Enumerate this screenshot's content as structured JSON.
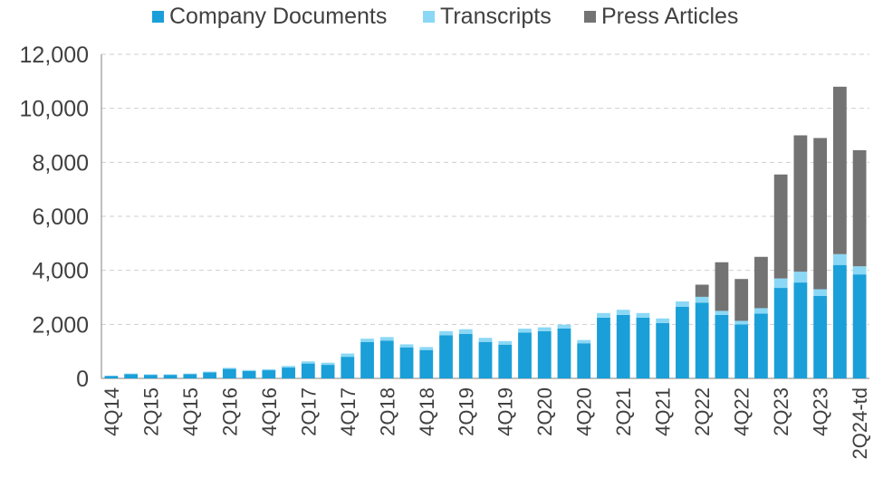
{
  "chart_data": {
    "type": "bar",
    "stacked": true,
    "title": "",
    "xlabel": "",
    "ylabel": "",
    "ylim": [
      0,
      12000
    ],
    "yticks": [
      0,
      2000,
      4000,
      6000,
      8000,
      10000,
      12000
    ],
    "ytick_labels": [
      "0",
      "2,000",
      "4,000",
      "6,000",
      "8,000",
      "10,000",
      "12,000"
    ],
    "grid": "horizontal dashed",
    "legend_position": "top",
    "categories": [
      "4Q14",
      "1Q15",
      "2Q15",
      "3Q15",
      "4Q15",
      "1Q16",
      "2Q16",
      "3Q16",
      "4Q16",
      "1Q17",
      "2Q17",
      "3Q17",
      "4Q17",
      "1Q18",
      "2Q18",
      "3Q18",
      "4Q18",
      "1Q19",
      "2Q19",
      "3Q19",
      "4Q19",
      "1Q20",
      "2Q20",
      "3Q20",
      "4Q20",
      "1Q21",
      "2Q21",
      "3Q21",
      "4Q21",
      "1Q22",
      "2Q22",
      "3Q22",
      "4Q22",
      "1Q23",
      "2Q23",
      "3Q23",
      "4Q23",
      "1Q24",
      "2Q24-td"
    ],
    "tick_labels_shown": [
      "4Q14",
      "2Q15",
      "4Q15",
      "2Q16",
      "4Q16",
      "2Q17",
      "4Q17",
      "2Q18",
      "4Q18",
      "2Q19",
      "4Q19",
      "2Q20",
      "4Q20",
      "2Q21",
      "4Q21",
      "2Q22",
      "4Q22",
      "2Q23",
      "4Q23",
      "2Q24-td"
    ],
    "series": [
      {
        "name": "Company Documents",
        "color": "#1A9FD8",
        "values": [
          90,
          160,
          130,
          130,
          160,
          220,
          350,
          270,
          300,
          400,
          550,
          500,
          800,
          1350,
          1400,
          1150,
          1050,
          1600,
          1650,
          1350,
          1250,
          1700,
          1750,
          1850,
          1300,
          2250,
          2350,
          2250,
          2050,
          2650,
          2800,
          2350,
          2000,
          2400,
          3350,
          3550,
          3050,
          4200,
          3850
        ]
      },
      {
        "name": "Transcripts",
        "color": "#8AD8F5",
        "values": [
          10,
          20,
          20,
          20,
          20,
          30,
          40,
          40,
          40,
          60,
          80,
          80,
          120,
          120,
          130,
          110,
          110,
          150,
          170,
          150,
          130,
          140,
          140,
          140,
          120,
          170,
          190,
          170,
          170,
          200,
          220,
          150,
          130,
          200,
          350,
          400,
          250,
          400,
          300
        ]
      },
      {
        "name": "Press Articles",
        "color": "#737373",
        "values": [
          0,
          0,
          0,
          0,
          0,
          0,
          0,
          0,
          0,
          0,
          0,
          0,
          0,
          0,
          0,
          0,
          0,
          0,
          0,
          0,
          0,
          0,
          0,
          0,
          0,
          0,
          0,
          0,
          0,
          0,
          450,
          1800,
          1550,
          1900,
          3850,
          5050,
          5600,
          6200,
          4300
        ]
      }
    ]
  }
}
